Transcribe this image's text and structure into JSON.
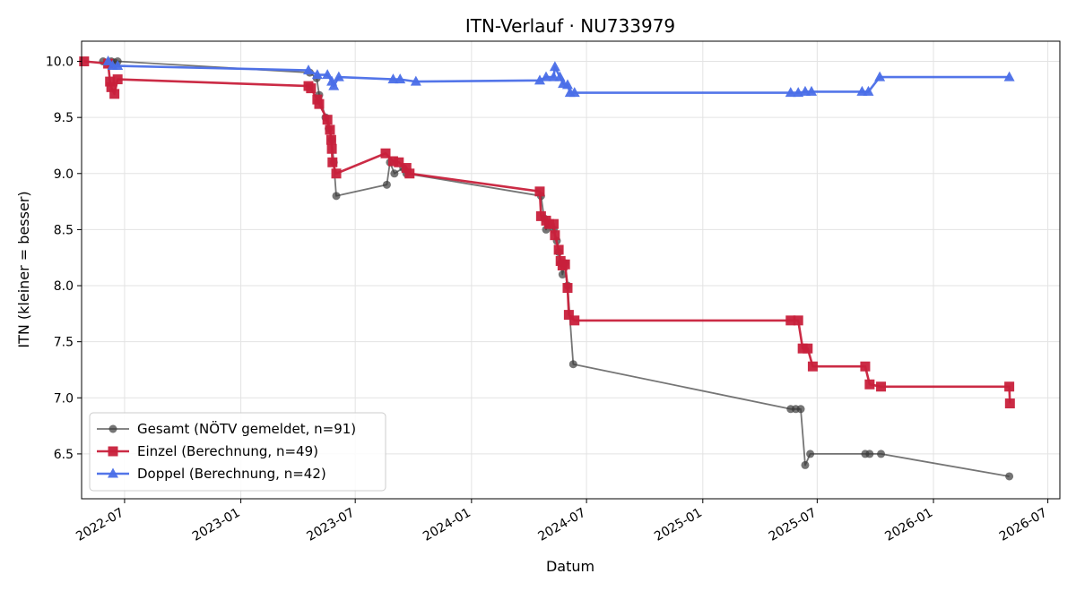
{
  "chart_data": {
    "type": "line",
    "title": "ITN-Verlauf · NU733979",
    "xlabel": "Datum",
    "ylabel": "ITN  (kleiner = besser)",
    "x_ticks": [
      "2022-07",
      "2023-01",
      "2023-07",
      "2024-01",
      "2024-07",
      "2025-01",
      "2025-07",
      "2026-01",
      "2026-07"
    ],
    "ylim": [
      6.1,
      10.18
    ],
    "y_ticks": [
      6.5,
      7.0,
      7.5,
      8.0,
      8.5,
      9.0,
      9.5,
      10.0
    ],
    "xlim": [
      "2022-04-24",
      "2026-07-20"
    ],
    "grid": true,
    "legend_position": "lower-left",
    "series": [
      {
        "name": "Gesamt (NÖTV gemeldet, n=91)",
        "color": "#3a3a3a",
        "marker": "circle",
        "points": [
          [
            "2022-05-28",
            10.0
          ],
          [
            "2022-06-10",
            10.0
          ],
          [
            "2022-06-15",
            9.99
          ],
          [
            "2022-06-20",
            10.0
          ],
          [
            "2023-04-20",
            9.9
          ],
          [
            "2023-05-01",
            9.85
          ],
          [
            "2023-05-05",
            9.7
          ],
          [
            "2023-05-15",
            9.5
          ],
          [
            "2023-05-20",
            9.4
          ],
          [
            "2023-05-25",
            9.3
          ],
          [
            "2023-05-28",
            9.1
          ],
          [
            "2023-06-01",
            8.8
          ],
          [
            "2023-08-20",
            8.9
          ],
          [
            "2023-08-25",
            9.1
          ],
          [
            "2023-09-01",
            9.0
          ],
          [
            "2023-09-15",
            9.05
          ],
          [
            "2023-09-20",
            9.0
          ],
          [
            "2024-04-20",
            8.8
          ],
          [
            "2024-04-25",
            8.6
          ],
          [
            "2024-04-28",
            8.5
          ],
          [
            "2024-05-01",
            8.55
          ],
          [
            "2024-05-10",
            8.5
          ],
          [
            "2024-05-15",
            8.4
          ],
          [
            "2024-05-18",
            8.3
          ],
          [
            "2024-05-21",
            8.2
          ],
          [
            "2024-05-24",
            8.1
          ],
          [
            "2024-05-28",
            8.2
          ],
          [
            "2024-06-01",
            8.0
          ],
          [
            "2024-06-10",
            7.3
          ],
          [
            "2025-05-20",
            6.9
          ],
          [
            "2025-05-28",
            6.9
          ],
          [
            "2025-06-05",
            6.9
          ],
          [
            "2025-06-12",
            6.4
          ],
          [
            "2025-06-20",
            6.5
          ],
          [
            "2025-09-15",
            6.5
          ],
          [
            "2025-09-22",
            6.5
          ],
          [
            "2025-10-10",
            6.5
          ],
          [
            "2026-05-01",
            6.3
          ]
        ]
      },
      {
        "name": "Einzel (Berechnung, n=49)",
        "color": "#c8203b",
        "marker": "square",
        "points": [
          [
            "2022-04-28",
            10.0
          ],
          [
            "2022-06-05",
            9.98
          ],
          [
            "2022-06-08",
            9.82
          ],
          [
            "2022-06-10",
            9.77
          ],
          [
            "2022-06-15",
            9.71
          ],
          [
            "2022-06-20",
            9.84
          ],
          [
            "2023-04-18",
            9.78
          ],
          [
            "2023-04-22",
            9.76
          ],
          [
            "2023-05-02",
            9.66
          ],
          [
            "2023-05-05",
            9.62
          ],
          [
            "2023-05-18",
            9.48
          ],
          [
            "2023-05-22",
            9.39
          ],
          [
            "2023-05-24",
            9.3
          ],
          [
            "2023-05-25",
            9.22
          ],
          [
            "2023-05-26",
            9.1
          ],
          [
            "2023-06-01",
            9.0
          ],
          [
            "2023-08-18",
            9.18
          ],
          [
            "2023-08-30",
            9.11
          ],
          [
            "2023-09-08",
            9.1
          ],
          [
            "2023-09-20",
            9.05
          ],
          [
            "2023-09-25",
            9.0
          ],
          [
            "2024-04-18",
            8.84
          ],
          [
            "2024-04-20",
            8.62
          ],
          [
            "2024-04-28",
            8.58
          ],
          [
            "2024-05-03",
            8.55
          ],
          [
            "2024-05-10",
            8.55
          ],
          [
            "2024-05-12",
            8.45
          ],
          [
            "2024-05-18",
            8.32
          ],
          [
            "2024-05-21",
            8.22
          ],
          [
            "2024-05-24",
            8.18
          ],
          [
            "2024-05-28",
            8.19
          ],
          [
            "2024-06-01",
            7.98
          ],
          [
            "2024-06-03",
            7.74
          ],
          [
            "2024-06-12",
            7.69
          ],
          [
            "2025-05-20",
            7.69
          ],
          [
            "2025-06-01",
            7.69
          ],
          [
            "2025-06-08",
            7.44
          ],
          [
            "2025-06-16",
            7.44
          ],
          [
            "2025-06-24",
            7.28
          ],
          [
            "2025-09-15",
            7.28
          ],
          [
            "2025-09-22",
            7.12
          ],
          [
            "2025-10-10",
            7.1
          ],
          [
            "2026-05-01",
            7.1
          ],
          [
            "2026-05-02",
            6.95
          ]
        ]
      },
      {
        "name": "Doppel (Berechnung, n=42)",
        "color": "#4a6ee8",
        "marker": "triangle",
        "points": [
          [
            "2022-06-05",
            10.0
          ],
          [
            "2022-06-12",
            9.96
          ],
          [
            "2022-06-20",
            9.96
          ],
          [
            "2023-04-18",
            9.92
          ],
          [
            "2023-05-02",
            9.88
          ],
          [
            "2023-05-18",
            9.88
          ],
          [
            "2023-05-25",
            9.82
          ],
          [
            "2023-05-28",
            9.78
          ],
          [
            "2023-06-05",
            9.86
          ],
          [
            "2023-08-30",
            9.84
          ],
          [
            "2023-09-10",
            9.84
          ],
          [
            "2023-10-05",
            9.82
          ],
          [
            "2024-04-18",
            9.83
          ],
          [
            "2024-04-28",
            9.86
          ],
          [
            "2024-05-10",
            9.86
          ],
          [
            "2024-05-12",
            9.95
          ],
          [
            "2024-05-20",
            9.86
          ],
          [
            "2024-05-25",
            9.8
          ],
          [
            "2024-06-01",
            9.79
          ],
          [
            "2024-06-05",
            9.72
          ],
          [
            "2024-06-12",
            9.72
          ],
          [
            "2025-05-20",
            9.72
          ],
          [
            "2025-06-01",
            9.72
          ],
          [
            "2025-06-12",
            9.73
          ],
          [
            "2025-06-22",
            9.73
          ],
          [
            "2025-09-10",
            9.73
          ],
          [
            "2025-09-20",
            9.73
          ],
          [
            "2025-10-08",
            9.86
          ],
          [
            "2026-05-01",
            9.86
          ]
        ]
      }
    ]
  }
}
